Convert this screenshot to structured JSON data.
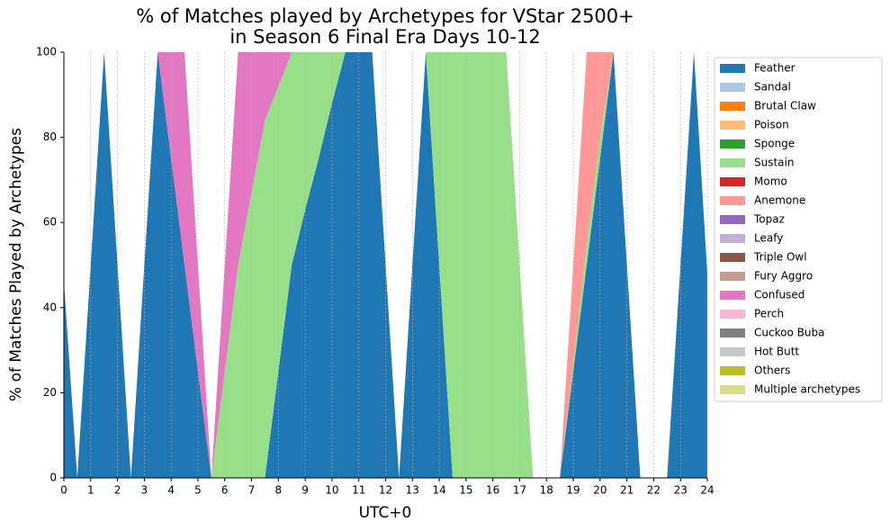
{
  "chart_data": {
    "type": "stacked_area",
    "title": [
      "% of Matches played by Archetypes for VStar 2500+",
      "in Season 6 Final Era Days 10-12"
    ],
    "x_label": "UTC+0",
    "y_label": "% of Matches Played by Archetypes",
    "x": [
      0,
      0.5,
      1,
      1.5,
      2,
      2.5,
      3,
      3.5,
      4,
      4.5,
      5,
      5.5,
      6,
      6.5,
      7,
      7.5,
      8,
      8.5,
      9,
      9.5,
      10,
      10.5,
      11,
      11.5,
      12,
      12.5,
      13,
      13.5,
      14,
      14.5,
      15,
      15.5,
      16,
      16.5,
      17,
      17.5,
      18,
      18.5,
      19,
      19.5,
      20,
      20.5,
      21,
      21.5,
      22,
      22.5,
      23,
      23.5,
      24
    ],
    "xlim": [
      0,
      24
    ],
    "ylim": [
      0,
      100
    ],
    "xticks": [
      0,
      1,
      2,
      3,
      4,
      5,
      6,
      7,
      8,
      9,
      10,
      11,
      12,
      13,
      14,
      15,
      16,
      17,
      18,
      19,
      20,
      21,
      22,
      23,
      24
    ],
    "yticks": [
      0,
      20,
      40,
      60,
      80,
      100
    ],
    "grid": "x",
    "legend": "outside upper right",
    "series": [
      {
        "name": "Feather",
        "color": "#1f77b4",
        "values": [
          46,
          0,
          50,
          100,
          50,
          0,
          50,
          100,
          75,
          50,
          25,
          0,
          0,
          0,
          0,
          0,
          25,
          50,
          63,
          75,
          88,
          100,
          100,
          100,
          50,
          0,
          50,
          100,
          50,
          0,
          0,
          0,
          0,
          0,
          0,
          0,
          0,
          0,
          25,
          50,
          75,
          100,
          50,
          0,
          0,
          0,
          50,
          100,
          48
        ]
      },
      {
        "name": "Sandal",
        "color": "#aec7e8",
        "values": [
          0,
          0,
          0,
          0,
          0,
          0,
          0,
          0,
          0,
          0,
          0,
          0,
          0,
          0,
          0,
          0,
          0,
          0,
          0,
          0,
          0,
          0,
          0,
          0,
          0,
          0,
          0,
          0,
          0,
          0,
          0,
          0,
          0,
          0,
          0,
          0,
          0,
          0,
          0,
          0,
          0,
          0,
          0,
          0,
          0,
          0,
          0,
          0,
          0
        ]
      },
      {
        "name": "Brutal Claw",
        "color": "#ff7f0e",
        "values": [
          0,
          0,
          0,
          0,
          0,
          0,
          0,
          0,
          0,
          0,
          0,
          0,
          0,
          0,
          0,
          0,
          0,
          0,
          0,
          0,
          0,
          0,
          0,
          0,
          0,
          0,
          0,
          0,
          0,
          0,
          0,
          0,
          0,
          0,
          0,
          0,
          0,
          0,
          0,
          0,
          0,
          0,
          0,
          0,
          0,
          0,
          0,
          0,
          0
        ]
      },
      {
        "name": "Poison",
        "color": "#ffbb78",
        "values": [
          0,
          0,
          0,
          0,
          0,
          0,
          0,
          0,
          0,
          0,
          0,
          0,
          0,
          0,
          0,
          0,
          0,
          0,
          0,
          0,
          0,
          0,
          0,
          0,
          0,
          0,
          0,
          0,
          0,
          0,
          0,
          0,
          0,
          0,
          0,
          0,
          0,
          0,
          0,
          0,
          0,
          0,
          0,
          0,
          0,
          0,
          0,
          0,
          0
        ]
      },
      {
        "name": "Sponge",
        "color": "#2ca02c",
        "values": [
          0,
          0,
          0,
          0,
          0,
          0,
          0,
          0,
          0,
          0,
          0,
          0,
          0,
          0,
          0,
          0,
          0,
          0,
          0,
          0,
          0,
          0,
          0,
          0,
          0,
          0,
          0,
          0,
          0,
          0,
          0,
          0,
          0,
          0,
          0,
          0,
          0,
          0,
          0,
          0,
          0,
          0,
          0,
          0,
          0,
          0,
          0,
          0,
          0
        ]
      },
      {
        "name": "Sustain",
        "color": "#98df8a",
        "values": [
          0,
          0,
          0,
          0,
          0,
          0,
          0,
          0,
          0,
          0,
          0,
          0,
          25,
          50,
          67,
          84,
          67,
          50,
          37,
          25,
          12,
          0,
          0,
          0,
          0,
          0,
          0,
          0,
          50,
          100,
          100,
          100,
          100,
          100,
          50,
          0,
          0,
          0,
          2,
          5,
          5,
          0,
          0,
          0,
          0,
          0,
          0,
          0,
          0
        ]
      },
      {
        "name": "Momo",
        "color": "#d62728",
        "values": [
          0,
          0,
          0,
          0,
          0,
          0,
          0,
          0,
          0,
          0,
          0,
          0,
          0,
          0,
          0,
          0,
          0,
          0,
          0,
          0,
          0,
          0,
          0,
          0,
          0,
          0,
          0,
          0,
          0,
          0,
          0,
          0,
          0,
          0,
          0,
          0,
          0,
          0,
          0,
          0,
          0,
          0,
          0,
          0,
          0,
          0,
          0,
          0,
          0
        ]
      },
      {
        "name": "Anemone",
        "color": "#ff9896",
        "values": [
          0,
          0,
          0,
          0,
          0,
          0,
          0,
          0,
          0,
          0,
          0,
          0,
          0,
          0,
          0,
          0,
          0,
          0,
          0,
          0,
          0,
          0,
          0,
          0,
          0,
          0,
          0,
          0,
          0,
          0,
          0,
          0,
          0,
          0,
          0,
          0,
          0,
          0,
          23,
          45,
          20,
          0,
          0,
          0,
          0,
          0,
          0,
          0,
          0
        ]
      },
      {
        "name": "Topaz",
        "color": "#9467bd",
        "values": [
          0,
          0,
          0,
          0,
          0,
          0,
          0,
          0,
          0,
          0,
          0,
          0,
          0,
          0,
          0,
          0,
          0,
          0,
          0,
          0,
          0,
          0,
          0,
          0,
          0,
          0,
          0,
          0,
          0,
          0,
          0,
          0,
          0,
          0,
          0,
          0,
          0,
          0,
          0,
          0,
          0,
          0,
          0,
          0,
          0,
          0,
          0,
          0,
          0
        ]
      },
      {
        "name": "Leafy",
        "color": "#c5b0d5",
        "values": [
          0,
          0,
          0,
          0,
          0,
          0,
          0,
          0,
          0,
          0,
          0,
          0,
          0,
          0,
          0,
          0,
          0,
          0,
          0,
          0,
          0,
          0,
          0,
          0,
          0,
          0,
          0,
          0,
          0,
          0,
          0,
          0,
          0,
          0,
          0,
          0,
          0,
          0,
          0,
          0,
          0,
          0,
          0,
          0,
          0,
          0,
          0,
          0,
          0
        ]
      },
      {
        "name": "Triple Owl",
        "color": "#8c564b",
        "values": [
          0,
          0,
          0,
          0,
          0,
          0,
          0,
          0,
          0,
          0,
          0,
          0,
          0,
          0,
          0,
          0,
          0,
          0,
          0,
          0,
          0,
          0,
          0,
          0,
          0,
          0,
          0,
          0,
          0,
          0,
          0,
          0,
          0,
          0,
          0,
          0,
          0,
          0,
          0,
          0,
          0,
          0,
          0,
          0,
          0,
          0,
          0,
          0,
          0
        ]
      },
      {
        "name": "Fury Aggro",
        "color": "#c49c94",
        "values": [
          0,
          0,
          0,
          0,
          0,
          0,
          0,
          0,
          0,
          0,
          0,
          0,
          0,
          0,
          0,
          0,
          0,
          0,
          0,
          0,
          0,
          0,
          0,
          0,
          0,
          0,
          0,
          0,
          0,
          0,
          0,
          0,
          0,
          0,
          0,
          0,
          0,
          0,
          0,
          0,
          0,
          0,
          0,
          0,
          0,
          0,
          0,
          0,
          0
        ]
      },
      {
        "name": "Confused",
        "color": "#e377c2",
        "values": [
          0,
          0,
          0,
          0,
          0,
          0,
          0,
          0,
          25,
          50,
          25,
          0,
          25,
          50,
          33,
          16,
          8,
          0,
          0,
          0,
          0,
          0,
          0,
          0,
          0,
          0,
          0,
          0,
          0,
          0,
          0,
          0,
          0,
          0,
          0,
          0,
          0,
          0,
          0,
          0,
          0,
          0,
          0,
          0,
          0,
          0,
          0,
          0,
          0
        ]
      },
      {
        "name": "Perch",
        "color": "#f7b6d2",
        "values": [
          0,
          0,
          0,
          0,
          0,
          0,
          0,
          0,
          0,
          0,
          0,
          0,
          0,
          0,
          0,
          0,
          0,
          0,
          0,
          0,
          0,
          0,
          0,
          0,
          0,
          0,
          0,
          0,
          0,
          0,
          0,
          0,
          0,
          0,
          0,
          0,
          0,
          0,
          0,
          0,
          0,
          0,
          0,
          0,
          0,
          0,
          0,
          0,
          0
        ]
      },
      {
        "name": "Cuckoo Buba",
        "color": "#7f7f7f",
        "values": [
          0,
          0,
          0,
          0,
          0,
          0,
          0,
          0,
          0,
          0,
          0,
          0,
          0,
          0,
          0,
          0,
          0,
          0,
          0,
          0,
          0,
          0,
          0,
          0,
          0,
          0,
          0,
          0,
          0,
          0,
          0,
          0,
          0,
          0,
          0,
          0,
          0,
          0,
          0,
          0,
          0,
          0,
          0,
          0,
          0,
          0,
          0,
          0,
          0
        ]
      },
      {
        "name": "Hot Butt",
        "color": "#c7c7c7",
        "values": [
          0,
          0,
          0,
          0,
          0,
          0,
          0,
          0,
          0,
          0,
          0,
          0,
          0,
          0,
          0,
          0,
          0,
          0,
          0,
          0,
          0,
          0,
          0,
          0,
          0,
          0,
          0,
          0,
          0,
          0,
          0,
          0,
          0,
          0,
          0,
          0,
          0,
          0,
          0,
          0,
          0,
          0,
          0,
          0,
          0,
          0,
          0,
          0,
          0
        ]
      },
      {
        "name": "Others",
        "color": "#bcbd22",
        "values": [
          0,
          0,
          0,
          0,
          0,
          0,
          0,
          0,
          0,
          0,
          0,
          0,
          0,
          0,
          0,
          0,
          0,
          0,
          0,
          0,
          0,
          0,
          0,
          0,
          0,
          0,
          0,
          0,
          0,
          0,
          0,
          0,
          0,
          0,
          0,
          0,
          0,
          0,
          0,
          0,
          0,
          0,
          0,
          0,
          0,
          0,
          0,
          0,
          0
        ]
      },
      {
        "name": "Multiple archetypes",
        "color": "#dbdb8d",
        "values": [
          0,
          0,
          0,
          0,
          0,
          0,
          0,
          0,
          0,
          0,
          0,
          0,
          0,
          0,
          0,
          0,
          0,
          0,
          0,
          0,
          0,
          0,
          0,
          0,
          0,
          0,
          0,
          0,
          0,
          0,
          0,
          0,
          0,
          0,
          0,
          0,
          0,
          0,
          0,
          0,
          0,
          0,
          0,
          0,
          0,
          0,
          0,
          0,
          0
        ]
      }
    ]
  }
}
